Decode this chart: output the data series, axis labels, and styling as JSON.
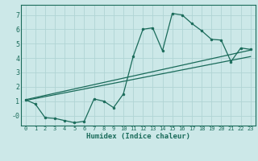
{
  "xlabel": "Humidex (Indice chaleur)",
  "ylabel": "",
  "bg_color": "#cce8e8",
  "grid_color": "#b0d4d4",
  "line_color": "#1a6b5a",
  "xlim": [
    -0.5,
    23.5
  ],
  "ylim": [
    -0.7,
    7.7
  ],
  "xticks": [
    0,
    1,
    2,
    3,
    4,
    5,
    6,
    7,
    8,
    9,
    10,
    11,
    12,
    13,
    14,
    15,
    16,
    17,
    18,
    19,
    20,
    21,
    22,
    23
  ],
  "yticks": [
    0,
    1,
    2,
    3,
    4,
    5,
    6,
    7
  ],
  "ytick_labels": [
    "-0",
    "1",
    "2",
    "3",
    "4",
    "5",
    "6",
    "7"
  ],
  "curve1_x": [
    0,
    1,
    2,
    3,
    4,
    5,
    6,
    7,
    8,
    9,
    10,
    11,
    12,
    13,
    14,
    15,
    16,
    17,
    18,
    19,
    20,
    21,
    22,
    23
  ],
  "curve1_y": [
    1.1,
    0.8,
    -0.15,
    -0.2,
    -0.35,
    -0.5,
    -0.4,
    1.15,
    1.0,
    0.55,
    1.5,
    4.1,
    6.0,
    6.1,
    4.5,
    7.1,
    7.0,
    6.4,
    5.9,
    5.3,
    5.25,
    3.75,
    4.7,
    4.6
  ],
  "line1_x": [
    0,
    23
  ],
  "line1_y": [
    1.05,
    4.1
  ],
  "line2_x": [
    0,
    23
  ],
  "line2_y": [
    1.1,
    4.55
  ],
  "marker_size": 2.0,
  "line_width": 0.9
}
